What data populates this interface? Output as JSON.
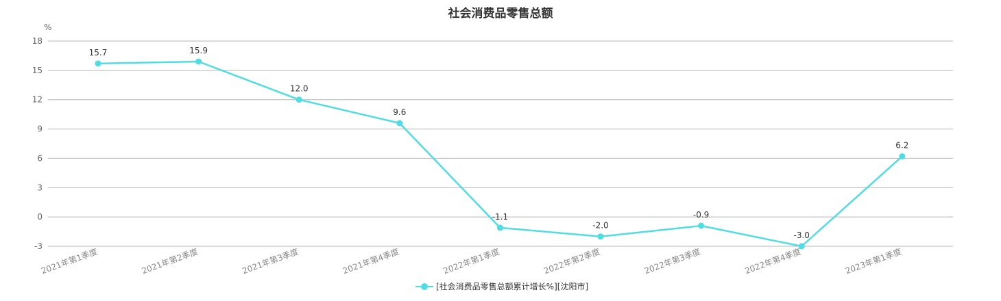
{
  "chart_data": {
    "type": "line",
    "title": "社会消费品零售总额",
    "ylabel": "%",
    "ylim": [
      -3,
      18
    ],
    "yticks": [
      -3,
      0,
      3,
      6,
      9,
      12,
      15,
      18
    ],
    "ytick_labels": [
      "-3",
      "0",
      "3",
      "6",
      "9",
      "12",
      "15",
      "18"
    ],
    "grid": true,
    "legend_position": "bottom-center",
    "categories": [
      "2021年第1季度",
      "2021年第2季度",
      "2021年第3季度",
      "2021年第4季度",
      "2022年第1季度",
      "2022年第2季度",
      "2022年第3季度",
      "2022年第4季度",
      "2023年第1季度"
    ],
    "series": [
      {
        "name": "[社会消费品零售总额累计增长%][沈阳市]",
        "color": "#4fdde3",
        "values": [
          15.7,
          15.9,
          12.0,
          9.6,
          -1.1,
          -2.0,
          -0.9,
          -3.0,
          6.2
        ],
        "labels": [
          "15.7",
          "15.9",
          "12.0",
          "9.6",
          "-1.1",
          "-2.0",
          "-0.9",
          "-3.0",
          "6.2"
        ]
      }
    ]
  }
}
